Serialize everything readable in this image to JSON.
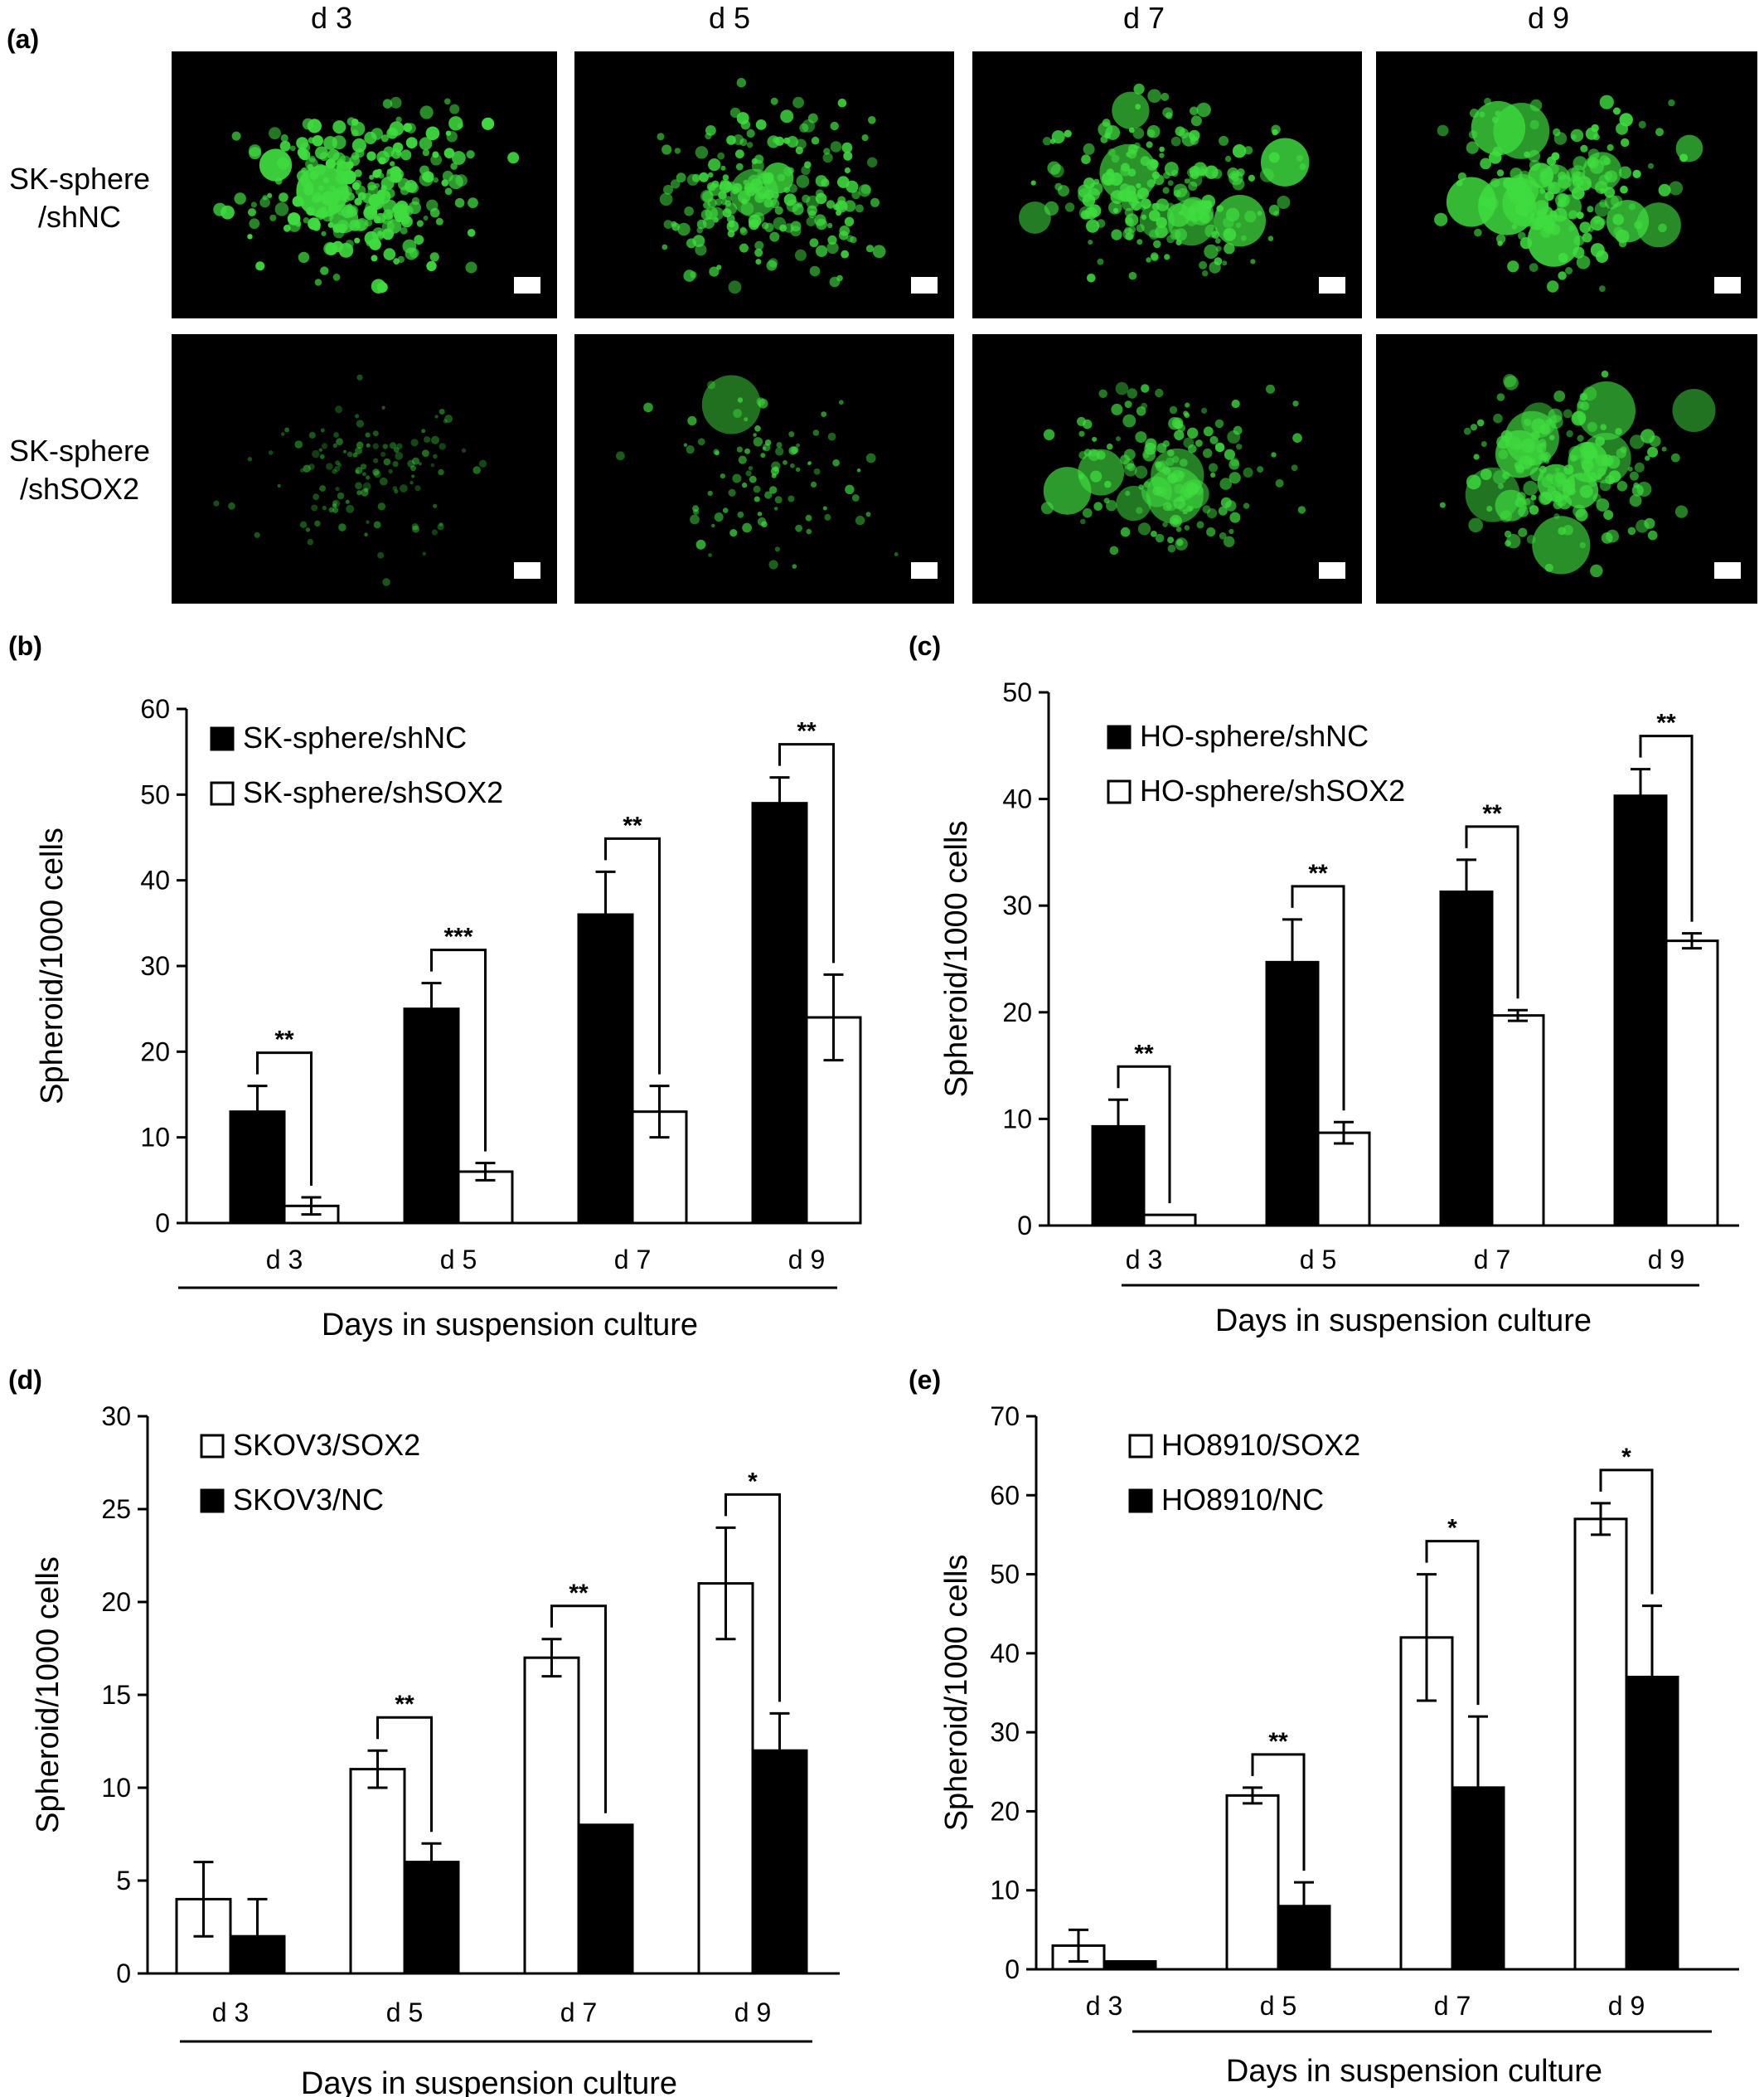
{
  "panel_a": {
    "label": "(a)",
    "columns": [
      "d 3",
      "d 5",
      "d 7",
      "d 9"
    ],
    "rows": [
      {
        "label_line1": "SK-sphere",
        "label_line2": "/shNC"
      },
      {
        "label_line1": "SK-sphere",
        "label_line2": "/shSOX2"
      }
    ],
    "fluorescence_color": "#3fdc3f",
    "background_color": "#000000"
  },
  "colors": {
    "filled": "#000000",
    "open": "#ffffff",
    "stroke": "#000000"
  },
  "chart_data": [
    {
      "panel": "(b)",
      "type": "bar",
      "categories": [
        "d 3",
        "d 5",
        "d 7",
        "d 9"
      ],
      "series": [
        {
          "name": "SK-sphere/shNC",
          "fill": "black",
          "values": [
            13,
            25,
            36,
            49
          ],
          "errors": [
            3,
            3,
            5,
            3
          ]
        },
        {
          "name": "SK-sphere/shSOX2",
          "fill": "white",
          "values": [
            2,
            6,
            13,
            24
          ],
          "errors": [
            1,
            1,
            3,
            5
          ]
        }
      ],
      "significance": [
        "**",
        "***",
        "**",
        "**"
      ],
      "ylabel": "Spheroid/1000 cells",
      "xlabel": "Days in suspension culture",
      "ylim": [
        0,
        60
      ],
      "yticks": [
        "0",
        "10",
        "20",
        "30",
        "40",
        "50",
        "60"
      ],
      "legend": "top-left"
    },
    {
      "panel": "(c)",
      "type": "bar",
      "categories": [
        "d 3",
        "d 5",
        "d 7",
        "d 9"
      ],
      "series": [
        {
          "name": "HO-sphere/shNC",
          "fill": "black",
          "values": [
            9.3,
            24.7,
            31.3,
            40.3
          ],
          "errors": [
            2.5,
            4,
            3,
            2.5
          ]
        },
        {
          "name": "HO-sphere/shSOX2",
          "fill": "white",
          "values": [
            1,
            8.7,
            19.7,
            26.7
          ],
          "errors": [
            0,
            1,
            0.5,
            0.7
          ]
        }
      ],
      "significance": [
        "**",
        "**",
        "**",
        "**"
      ],
      "ylabel": "Spheroid/1000 cells",
      "xlabel": "Days in suspension culture",
      "ylim": [
        0,
        50
      ],
      "yticks": [
        "0",
        "10",
        "20",
        "30",
        "40",
        "50"
      ],
      "legend": "top-left"
    },
    {
      "panel": "(d)",
      "type": "bar",
      "categories": [
        "d 3",
        "d 5",
        "d 7",
        "d 9"
      ],
      "series": [
        {
          "name": "SKOV3/SOX2",
          "fill": "white",
          "values": [
            4,
            11,
            17,
            21
          ],
          "errors": [
            2,
            1,
            1,
            3
          ]
        },
        {
          "name": "SKOV3/NC",
          "fill": "black",
          "values": [
            2,
            6,
            8,
            12
          ],
          "errors": [
            2,
            1,
            0,
            2
          ]
        }
      ],
      "significance": [
        "",
        "**",
        "**",
        "*"
      ],
      "ylabel": "Spheroid/1000 cells",
      "xlabel": "Days in suspension culture",
      "ylim": [
        0,
        30
      ],
      "yticks": [
        "0",
        "5",
        "10",
        "15",
        "20",
        "25",
        "30"
      ],
      "legend": "top-left"
    },
    {
      "panel": "(e)",
      "type": "bar",
      "categories": [
        "d 3",
        "d 5",
        "d 7",
        "d 9"
      ],
      "series": [
        {
          "name": "HO8910/SOX2",
          "fill": "white",
          "values": [
            3,
            22,
            42,
            57
          ],
          "errors": [
            2,
            1,
            8,
            2
          ]
        },
        {
          "name": "HO8910/NC",
          "fill": "black",
          "values": [
            1,
            8,
            23,
            37
          ],
          "errors": [
            0,
            3,
            9,
            9
          ]
        }
      ],
      "significance": [
        "",
        "**",
        "*",
        "*"
      ],
      "ylabel": "Spheroid/1000 cells",
      "xlabel": "Days in suspension culture",
      "ylim": [
        0,
        70
      ],
      "yticks": [
        "0",
        "10",
        "20",
        "30",
        "40",
        "50",
        "60",
        "70"
      ],
      "legend": "top-left"
    }
  ]
}
